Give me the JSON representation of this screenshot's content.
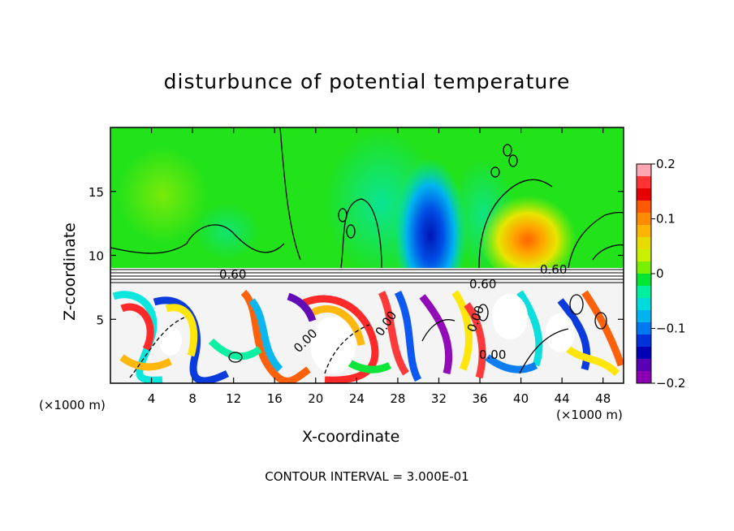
{
  "chart_data": {
    "type": "heatmap",
    "title": "disturbunce of potential temperature",
    "xlabel": "X-coordinate",
    "ylabel": "Z-coordinate",
    "x_unit_left": "(×1000 m)",
    "x_unit_right": "(×1000 m)",
    "xlim": [
      0,
      50
    ],
    "ylim": [
      0,
      20
    ],
    "x_ticks": [
      4,
      8,
      12,
      16,
      20,
      24,
      28,
      32,
      36,
      40,
      44,
      48
    ],
    "y_ticks": [
      5,
      10,
      15
    ],
    "colorbar": {
      "min": -0.2,
      "max": 0.2,
      "ticks": [
        0.2,
        0.1,
        0,
        -0.1,
        -0.2
      ],
      "tick_labels": [
        "0.2",
        "0.1",
        "0",
        "−0.1",
        "−0.2"
      ],
      "colors": [
        "#ffa6b4",
        "#ff3333",
        "#e60000",
        "#ff5a00",
        "#ff8c00",
        "#ffb400",
        "#e6dc00",
        "#c8f000",
        "#78f000",
        "#00e632",
        "#00f0a0",
        "#00dcdc",
        "#00b4f0",
        "#0078f0",
        "#0032dc",
        "#0000b4",
        "#5a00b4",
        "#8c00b4"
      ]
    },
    "contour_labels": [
      "0.60",
      "0.60",
      "0.60",
      "0.00",
      "0.00",
      "0.00",
      "0.00"
    ],
    "grid": false
  },
  "footer": "CONTOUR INTERVAL = 3.000E-01",
  "colors": {
    "background_upper": "#22e21a",
    "negative_core": "#0022cc",
    "positive_core": "#ffa500",
    "axis": "#000000"
  }
}
